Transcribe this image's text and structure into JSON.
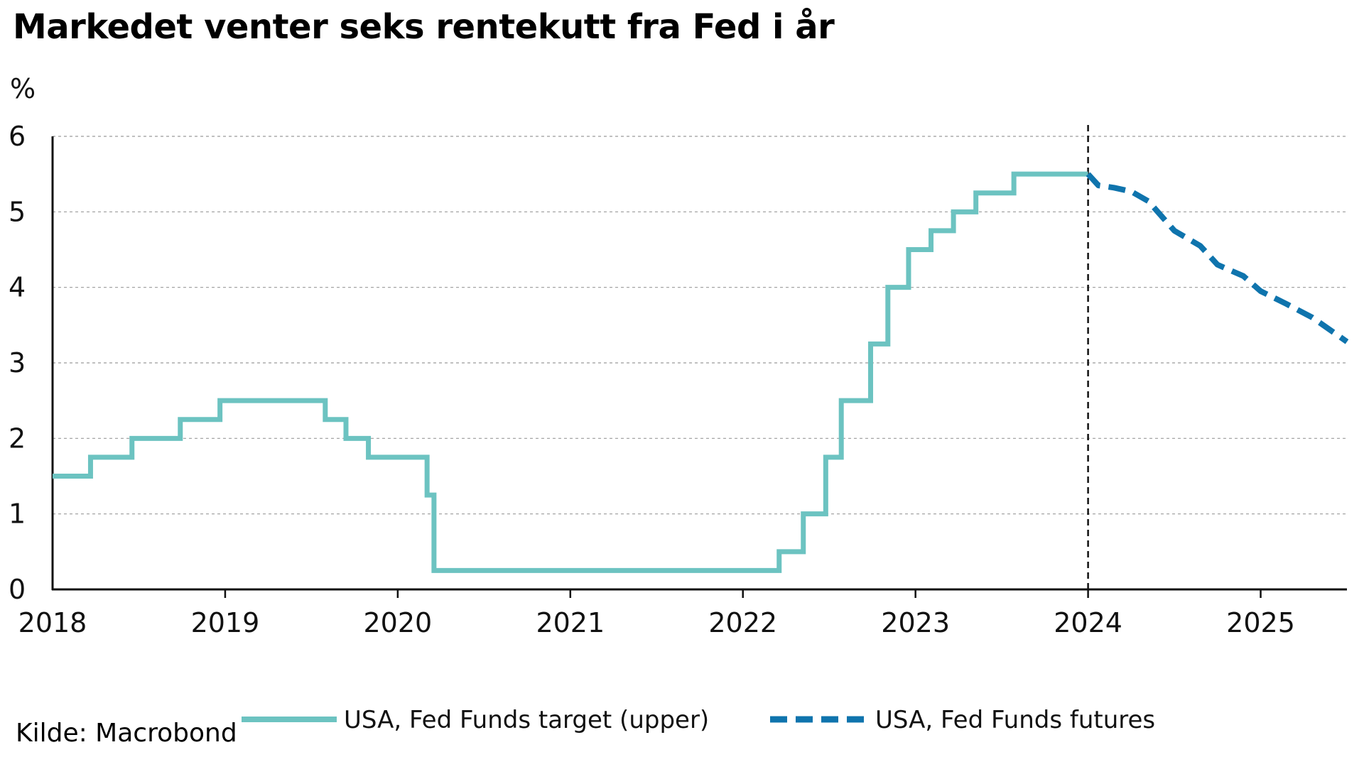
{
  "chart_data": {
    "type": "line",
    "title": "Markedet venter seks rentekutt fra Fed i år",
    "ylabel": "%",
    "ylim": [
      0,
      6
    ],
    "xlim": [
      2018.0,
      2025.5
    ],
    "y_ticks": [
      "0",
      "1",
      "2",
      "3",
      "4",
      "5",
      "6"
    ],
    "x_ticks": [
      "2018",
      "2019",
      "2020",
      "2021",
      "2022",
      "2023",
      "2024",
      "2025"
    ],
    "grid": true,
    "vertical_marker_x": 2024.0,
    "legend_position": "bottom",
    "series": [
      {
        "name": "USA, Fed Funds target (upper)",
        "style": "solid",
        "color": "#6cc3c1",
        "step": true,
        "points": [
          [
            2018.0,
            1.5
          ],
          [
            2018.22,
            1.75
          ],
          [
            2018.46,
            2.0
          ],
          [
            2018.74,
            2.25
          ],
          [
            2018.97,
            2.5
          ],
          [
            2019.58,
            2.25
          ],
          [
            2019.7,
            2.0
          ],
          [
            2019.83,
            1.75
          ],
          [
            2020.17,
            1.25
          ],
          [
            2020.21,
            0.25
          ],
          [
            2022.21,
            0.5
          ],
          [
            2022.35,
            1.0
          ],
          [
            2022.48,
            1.75
          ],
          [
            2022.57,
            2.5
          ],
          [
            2022.74,
            3.25
          ],
          [
            2022.84,
            4.0
          ],
          [
            2022.96,
            4.5
          ],
          [
            2023.09,
            4.75
          ],
          [
            2023.22,
            5.0
          ],
          [
            2023.35,
            5.25
          ],
          [
            2023.57,
            5.5
          ],
          [
            2024.0,
            5.5
          ]
        ]
      },
      {
        "name": "USA, Fed Funds futures",
        "style": "dashed",
        "color": "#0f74ad",
        "step": false,
        "points": [
          [
            2024.0,
            5.5
          ],
          [
            2024.06,
            5.35
          ],
          [
            2024.15,
            5.32
          ],
          [
            2024.25,
            5.27
          ],
          [
            2024.35,
            5.14
          ],
          [
            2024.5,
            4.75
          ],
          [
            2024.65,
            4.55
          ],
          [
            2024.75,
            4.3
          ],
          [
            2024.9,
            4.15
          ],
          [
            2025.0,
            3.95
          ],
          [
            2025.15,
            3.78
          ],
          [
            2025.3,
            3.6
          ],
          [
            2025.5,
            3.28
          ]
        ]
      }
    ]
  },
  "source": "Kilde: Macrobond"
}
